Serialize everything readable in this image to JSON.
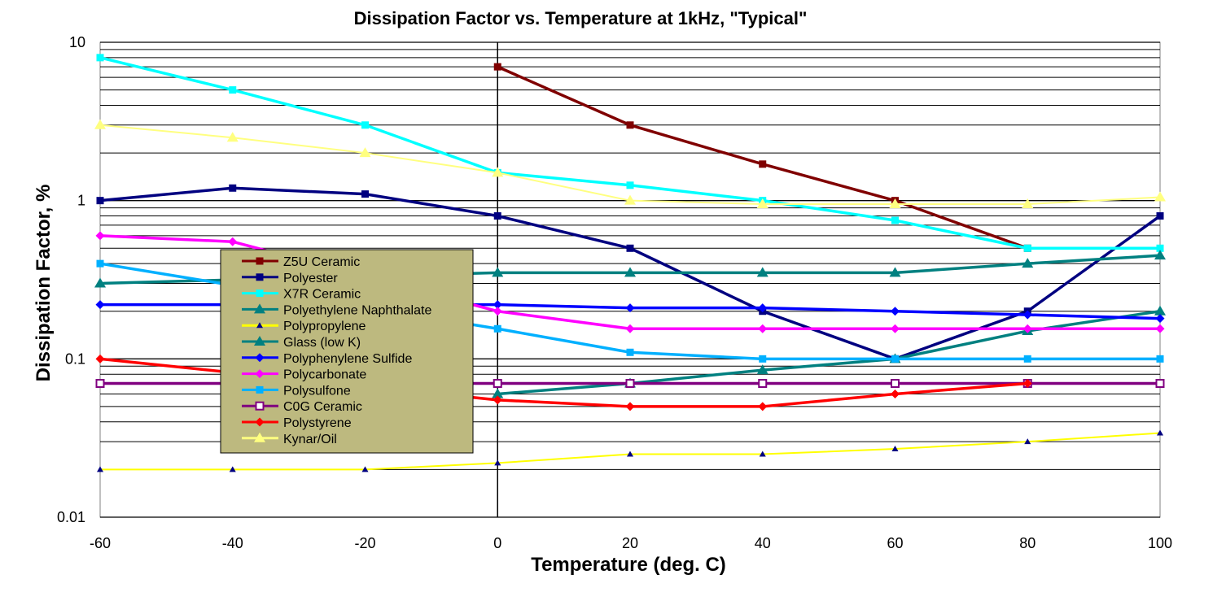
{
  "chart_data": {
    "type": "line",
    "title": "Dissipation Factor vs. Temperature at 1kHz, \"Typical\"",
    "xlabel": "Temperature (deg. C)",
    "ylabel": "Dissipation Factor, %",
    "xlim": [
      -60,
      100
    ],
    "ylim": [
      0.01,
      10
    ],
    "yscale": "log",
    "x_ticks": [
      -60,
      -40,
      -20,
      0,
      20,
      40,
      60,
      80,
      100
    ],
    "x_tick_labels": [
      "-60",
      "-40",
      "-20",
      "0",
      "20",
      "40",
      "60",
      "80",
      "100"
    ],
    "y_ticks": [
      0.01,
      0.1,
      1,
      10
    ],
    "y_tick_labels": [
      "0.01",
      "0.1",
      "1",
      "10"
    ],
    "grid": true,
    "legend_position": "center-left",
    "series": [
      {
        "name": "Z5U Ceramic",
        "color": "#800000",
        "marker": "square",
        "x": [
          0,
          20,
          40,
          60,
          80
        ],
        "y": [
          7,
          3,
          1.7,
          1.0,
          0.5
        ]
      },
      {
        "name": "Polyester",
        "color": "#000080",
        "marker": "square",
        "x": [
          -60,
          -40,
          -20,
          0,
          20,
          40,
          60,
          80,
          100
        ],
        "y": [
          1.0,
          1.2,
          1.1,
          0.8,
          0.5,
          0.2,
          0.1,
          0.2,
          0.8
        ]
      },
      {
        "name": "X7R Ceramic",
        "color": "#00FFFF",
        "marker": "square",
        "x": [
          -60,
          -40,
          -20,
          0,
          20,
          40,
          60,
          80,
          100
        ],
        "y": [
          8,
          5,
          3,
          1.5,
          1.25,
          1.0,
          0.75,
          0.5,
          0.5
        ]
      },
      {
        "name": "Polyethylene Naphthalate",
        "color": "#008080",
        "marker": "triangle",
        "x": [
          -60,
          0,
          20,
          40,
          60,
          80,
          100
        ],
        "y": [
          0.3,
          0.35,
          0.35,
          0.35,
          0.35,
          0.4,
          0.45
        ]
      },
      {
        "name": "Polypropylene",
        "color": "#FFFF00",
        "marker": "small-triangle",
        "x": [
          -60,
          -40,
          -20,
          0,
          20,
          40,
          60,
          80,
          100
        ],
        "y": [
          0.02,
          0.02,
          0.02,
          0.022,
          0.025,
          0.025,
          0.027,
          0.03,
          0.034
        ]
      },
      {
        "name": "Glass (low K)",
        "color": "#008080",
        "marker": "triangle",
        "x": [
          0,
          20,
          40,
          60,
          80,
          100
        ],
        "y": [
          0.06,
          0.07,
          0.085,
          0.1,
          0.15,
          0.2
        ]
      },
      {
        "name": "Polyphenylene Sulfide",
        "color": "#0000FF",
        "marker": "diamond",
        "x": [
          -60,
          0,
          20,
          40,
          60,
          80,
          100
        ],
        "y": [
          0.22,
          0.22,
          0.21,
          0.21,
          0.2,
          0.19,
          0.18
        ]
      },
      {
        "name": "Polycarbonate",
        "color": "#FF00FF",
        "marker": "diamond",
        "x": [
          -60,
          -40,
          0,
          20,
          40,
          60,
          80,
          100
        ],
        "y": [
          0.6,
          0.55,
          0.2,
          0.155,
          0.155,
          0.155,
          0.155,
          0.155
        ]
      },
      {
        "name": "Polysulfone",
        "color": "#00B0FF",
        "marker": "square",
        "x": [
          -60,
          0,
          20,
          40,
          60,
          80,
          100
        ],
        "y": [
          0.4,
          0.155,
          0.11,
          0.1,
          0.1,
          0.1,
          0.1
        ]
      },
      {
        "name": "C0G Ceramic",
        "color": "#800080",
        "marker": "open-square",
        "x": [
          -60,
          0,
          20,
          40,
          60,
          80,
          100
        ],
        "y": [
          0.07,
          0.07,
          0.07,
          0.07,
          0.07,
          0.07,
          0.07
        ]
      },
      {
        "name": "Polystyrene",
        "color": "#FF0000",
        "marker": "diamond",
        "x": [
          -60,
          0,
          20,
          40,
          60,
          80
        ],
        "y": [
          0.1,
          0.055,
          0.05,
          0.05,
          0.06,
          0.07
        ]
      },
      {
        "name": "Kynar/Oil",
        "color": "#FFFF80",
        "marker": "triangle",
        "x": [
          -60,
          -40,
          -20,
          0,
          20,
          40,
          60,
          80,
          100
        ],
        "y": [
          3,
          2.5,
          2,
          1.5,
          1.0,
          0.95,
          0.95,
          0.95,
          1.05
        ]
      }
    ]
  },
  "colors": {
    "background": "#FFFFFF",
    "grid": "#000000",
    "legend_background": "#BDB97F"
  }
}
